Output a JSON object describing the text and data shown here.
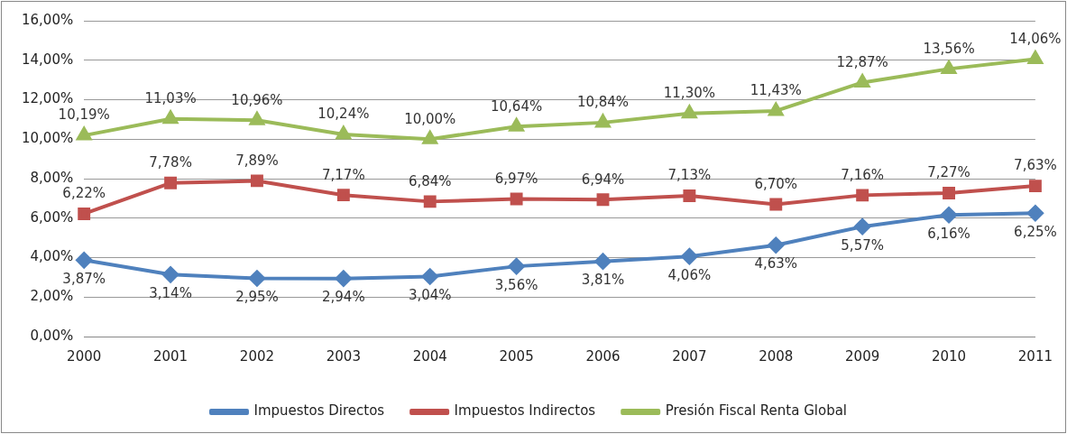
{
  "chart_data": {
    "type": "line",
    "categories": [
      "2000",
      "2001",
      "2002",
      "2003",
      "2004",
      "2005",
      "2006",
      "2007",
      "2008",
      "2009",
      "2010",
      "2011"
    ],
    "series": [
      {
        "name": "Impuestos Directos",
        "color": "#4f81bd",
        "marker": "diamond",
        "values": [
          3.87,
          3.14,
          2.95,
          2.94,
          3.04,
          3.56,
          3.81,
          4.06,
          4.63,
          5.57,
          6.16,
          6.25
        ],
        "value_labels": [
          "3,87%",
          "3,14%",
          "2,95%",
          "2,94%",
          "3,04%",
          "3,56%",
          "3,81%",
          "4,06%",
          "4,63%",
          "5,57%",
          "6,16%",
          "6,25%"
        ]
      },
      {
        "name": "Impuestos Indirectos",
        "color": "#c0504d",
        "marker": "square",
        "values": [
          6.22,
          7.78,
          7.89,
          7.17,
          6.84,
          6.97,
          6.94,
          7.13,
          6.7,
          7.16,
          7.27,
          7.63
        ],
        "value_labels": [
          "6,22%",
          "7,78%",
          "7,89%",
          "7,17%",
          "6,84%",
          "6,97%",
          "6,94%",
          "7,13%",
          "6,70%",
          "7,16%",
          "7,27%",
          "7,63%"
        ]
      },
      {
        "name": "Presión Fiscal Renta Global",
        "color": "#9bbb59",
        "marker": "triangle",
        "values": [
          10.19,
          11.03,
          10.96,
          10.24,
          10.0,
          10.64,
          10.84,
          11.3,
          11.43,
          12.87,
          13.56,
          14.06
        ],
        "value_labels": [
          "10,19%",
          "11,03%",
          "10,96%",
          "10,24%",
          "10,00%",
          "10,64%",
          "10,84%",
          "11,30%",
          "11,43%",
          "12,87%",
          "13,56%",
          "14,06%"
        ]
      }
    ],
    "ylim": [
      0,
      16
    ],
    "yticks": [
      {
        "value": 0,
        "label": "0,00%"
      },
      {
        "value": 2,
        "label": "2,00%"
      },
      {
        "value": 4,
        "label": "4,00%"
      },
      {
        "value": 6,
        "label": "6,00%"
      },
      {
        "value": 8,
        "label": "8,00%"
      },
      {
        "value": 10,
        "label": "10,00%"
      },
      {
        "value": 12,
        "label": "12,00%"
      },
      {
        "value": 14,
        "label": "14,00%"
      },
      {
        "value": 16,
        "label": "16,00%"
      }
    ],
    "grid": "y",
    "legend": "bottom"
  }
}
